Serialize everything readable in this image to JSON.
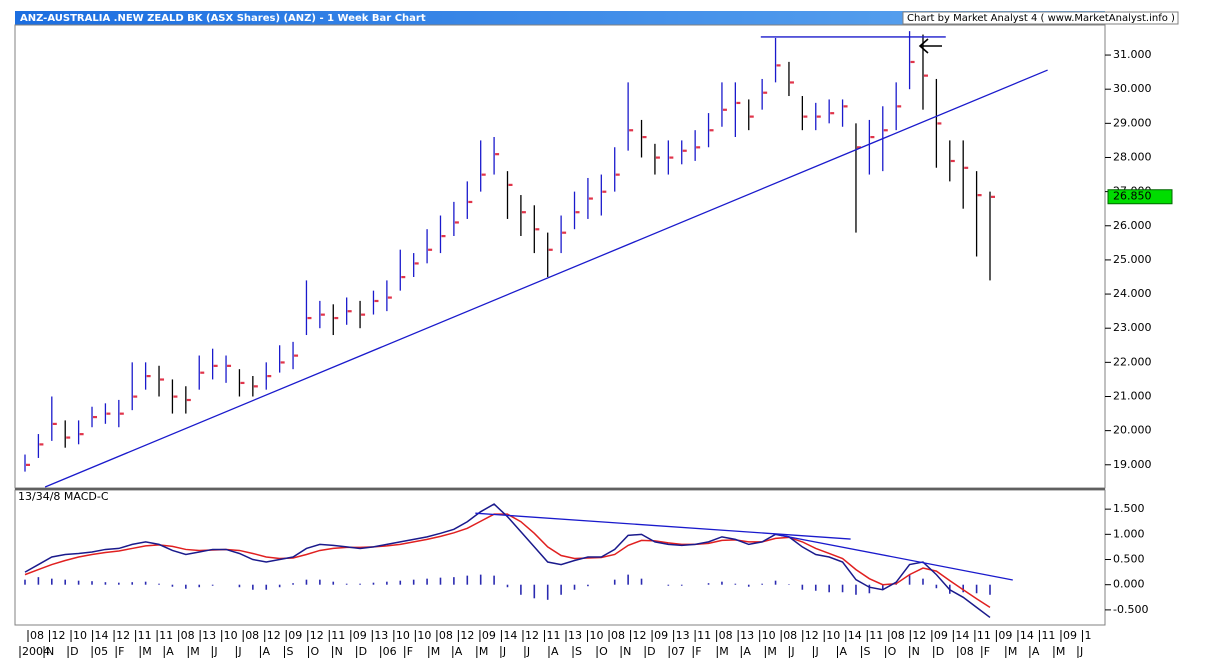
{
  "chart_data": [
    {
      "type": "ohlc",
      "title": "ANZ-AUSTRALIA .NEW ZEALD BK (ASX Shares) (ANZ) - 1 Week Bar Chart",
      "source": "Chart by Market Analyst 4 ( www.MarketAnalyst.info )",
      "up_color": "#1a1acc",
      "down_color": "#000000",
      "close_color": "#e0344a",
      "high": [
        19.3,
        19.9,
        21.0,
        20.3,
        20.3,
        20.7,
        20.8,
        20.9,
        22.0,
        22.0,
        21.9,
        21.5,
        21.3,
        22.2,
        22.4,
        22.2,
        21.8,
        21.6,
        22.0,
        22.5,
        22.6,
        24.4,
        23.8,
        23.7,
        23.9,
        23.8,
        24.1,
        24.4,
        25.3,
        25.2,
        25.9,
        26.3,
        26.7,
        27.3,
        28.5,
        28.6,
        27.6,
        26.9,
        26.6,
        25.8,
        26.3,
        27.0,
        27.4,
        27.5,
        28.3,
        30.2,
        29.1,
        28.4,
        28.5,
        28.5,
        28.8,
        29.3,
        30.2,
        30.2,
        29.7,
        30.3,
        31.5,
        30.8,
        29.8,
        29.6,
        29.7,
        29.7,
        29.0,
        29.1,
        29.5,
        30.2,
        31.7,
        31.6,
        30.3,
        28.5,
        28.5,
        27.6,
        27.0
      ],
      "low": [
        18.8,
        19.2,
        19.7,
        19.5,
        19.6,
        20.1,
        20.2,
        20.1,
        20.6,
        21.2,
        21.0,
        20.5,
        20.5,
        21.2,
        21.5,
        21.4,
        21.0,
        21.0,
        21.2,
        21.7,
        21.8,
        22.8,
        23.0,
        22.8,
        23.1,
        23.0,
        23.4,
        23.5,
        24.1,
        24.5,
        24.9,
        25.2,
        25.7,
        26.2,
        27.0,
        27.5,
        26.2,
        25.7,
        25.2,
        24.5,
        25.2,
        25.9,
        26.2,
        26.3,
        27.0,
        28.2,
        28.0,
        27.5,
        27.5,
        27.8,
        27.9,
        28.3,
        28.9,
        28.6,
        28.8,
        29.4,
        30.2,
        29.8,
        28.8,
        28.8,
        29.0,
        28.9,
        25.8,
        27.5,
        27.6,
        28.8,
        30.0,
        29.4,
        27.7,
        27.3,
        26.5,
        25.1,
        24.4
      ],
      "close": [
        19.0,
        19.6,
        20.2,
        19.8,
        19.9,
        20.4,
        20.5,
        20.5,
        21.0,
        21.6,
        21.5,
        21.0,
        20.9,
        21.7,
        21.9,
        21.9,
        21.4,
        21.3,
        21.6,
        22.0,
        22.2,
        23.3,
        23.4,
        23.3,
        23.5,
        23.4,
        23.8,
        23.9,
        24.5,
        24.9,
        25.3,
        25.7,
        26.1,
        26.7,
        27.5,
        28.1,
        27.2,
        26.4,
        25.9,
        25.3,
        25.8,
        26.4,
        26.8,
        27.0,
        27.5,
        28.8,
        28.6,
        28.0,
        28.0,
        28.2,
        28.3,
        28.8,
        29.4,
        29.6,
        29.2,
        29.9,
        30.7,
        30.2,
        29.2,
        29.2,
        29.3,
        29.5,
        28.3,
        28.6,
        28.8,
        29.5,
        30.8,
        30.4,
        29.0,
        27.9,
        27.7,
        26.9,
        26.85
      ],
      "last_price": 26.85,
      "last_price_label": "26.850",
      "last_price_color": "#00dd00",
      "trendline_color": "#1a1acc",
      "trendlines": [
        {
          "x": [
            1.5,
            76.3
          ],
          "y": [
            18.35,
            30.56
          ]
        },
        {
          "x": [
            54.9,
            68.7
          ],
          "y": [
            31.53,
            31.53
          ]
        }
      ],
      "ylim": [
        18.32,
        31.88
      ],
      "yticks": [
        {
          "value": 19,
          "label": "19.000"
        },
        {
          "value": 20,
          "label": "20.000"
        },
        {
          "value": 21,
          "label": "21.000"
        },
        {
          "value": 22,
          "label": "22.000"
        },
        {
          "value": 23,
          "label": "23.000"
        },
        {
          "value": 24,
          "label": "24.000"
        },
        {
          "value": 25,
          "label": "25.000"
        },
        {
          "value": 26,
          "label": "26.000"
        },
        {
          "value": 27,
          "label": "27.000"
        },
        {
          "value": 28,
          "label": "28.000"
        },
        {
          "value": 29,
          "label": "29.000"
        },
        {
          "value": 30,
          "label": "30.000"
        },
        {
          "value": 31,
          "label": "31.000"
        }
      ]
    },
    {
      "type": "macd",
      "label": "13/34/8 MACD-C",
      "macd_color": "#1a1a8c",
      "signal_color": "#e02020",
      "histogram_color": "#2a2ab0",
      "macd": [
        0.25,
        0.4,
        0.55,
        0.6,
        0.62,
        0.65,
        0.7,
        0.72,
        0.8,
        0.85,
        0.8,
        0.68,
        0.6,
        0.65,
        0.7,
        0.7,
        0.62,
        0.5,
        0.45,
        0.5,
        0.55,
        0.72,
        0.8,
        0.78,
        0.75,
        0.72,
        0.75,
        0.8,
        0.85,
        0.9,
        0.95,
        1.02,
        1.1,
        1.25,
        1.45,
        1.6,
        1.35,
        1.05,
        0.75,
        0.45,
        0.4,
        0.48,
        0.55,
        0.55,
        0.7,
        0.98,
        1.0,
        0.85,
        0.8,
        0.78,
        0.8,
        0.85,
        0.95,
        0.9,
        0.8,
        0.85,
        1.0,
        0.95,
        0.75,
        0.6,
        0.55,
        0.45,
        0.1,
        -0.05,
        -0.1,
        0.05,
        0.4,
        0.45,
        0.2,
        -0.1,
        -0.25,
        -0.45,
        -0.65
      ],
      "signal": [
        0.2,
        0.3,
        0.4,
        0.48,
        0.55,
        0.6,
        0.64,
        0.67,
        0.72,
        0.77,
        0.79,
        0.76,
        0.7,
        0.68,
        0.69,
        0.7,
        0.68,
        0.62,
        0.55,
        0.52,
        0.53,
        0.6,
        0.68,
        0.72,
        0.74,
        0.74,
        0.75,
        0.77,
        0.8,
        0.85,
        0.9,
        0.96,
        1.03,
        1.12,
        1.26,
        1.4,
        1.4,
        1.25,
        1.02,
        0.75,
        0.58,
        0.52,
        0.53,
        0.54,
        0.6,
        0.78,
        0.88,
        0.87,
        0.83,
        0.8,
        0.8,
        0.82,
        0.88,
        0.89,
        0.85,
        0.85,
        0.92,
        0.94,
        0.85,
        0.72,
        0.62,
        0.52,
        0.3,
        0.12,
        0.0,
        0.02,
        0.2,
        0.33,
        0.27,
        0.08,
        -0.1,
        -0.28,
        -0.45
      ],
      "histogram": [
        0.1,
        0.15,
        0.12,
        0.1,
        0.08,
        0.07,
        0.05,
        0.04,
        0.05,
        0.06,
        0.02,
        -0.04,
        -0.08,
        -0.05,
        -0.02,
        0,
        -0.05,
        -0.1,
        -0.1,
        -0.05,
        0.03,
        0.1,
        0.1,
        0.06,
        0.02,
        0.02,
        0.04,
        0.06,
        0.08,
        0.1,
        0.12,
        0.14,
        0.15,
        0.18,
        0.2,
        0.18,
        -0.05,
        -0.2,
        -0.27,
        -0.3,
        -0.2,
        -0.1,
        -0.03,
        0.0,
        0.1,
        0.2,
        0.12,
        0.0,
        -0.02,
        -0.02,
        0.0,
        0.03,
        0.06,
        0.02,
        -0.04,
        0.02,
        0.08,
        0.01,
        -0.1,
        -0.12,
        -0.15,
        -0.15,
        -0.2,
        -0.17,
        -0.1,
        0.03,
        0.2,
        0.12,
        -0.07,
        -0.18,
        -0.15,
        -0.17,
        -0.2
      ],
      "trendline_color": "#1a1acc",
      "trendlines": [
        {
          "x": [
            33.6,
            61.6
          ],
          "y": [
            1.42,
            0.906
          ]
        },
        {
          "x": [
            56.3,
            73.7
          ],
          "y": [
            0.985,
            0.094
          ]
        }
      ],
      "ylim": [
        -0.8,
        1.88
      ],
      "yticks": [
        {
          "value": -0.5,
          "label": "-0.500"
        },
        {
          "value": 0,
          "label": "0.000"
        },
        {
          "value": 0.5,
          "label": "0.500"
        },
        {
          "value": 1,
          "label": "1.000"
        },
        {
          "value": 1.5,
          "label": "1.500"
        }
      ]
    }
  ],
  "x_axis": {
    "day_labels": [
      "08",
      "12",
      "10",
      "14",
      "12",
      "11",
      "11",
      "08",
      "13",
      "10",
      "08",
      "12",
      "09",
      "12",
      "11",
      "09",
      "13",
      "10",
      "10",
      "08",
      "12",
      "09",
      "14",
      "12",
      "11",
      "13",
      "10",
      "08",
      "12",
      "09",
      "13",
      "11",
      "08",
      "13",
      "10",
      "08",
      "12",
      "10",
      "14",
      "11",
      "08",
      "12",
      "09",
      "14",
      "11",
      "09",
      "14",
      "11",
      "09",
      "1"
    ],
    "month_labels": [
      "2004",
      "N",
      "D",
      "05",
      "F",
      "M",
      "A",
      "M",
      "J",
      "J",
      "A",
      "S",
      "O",
      "N",
      "D",
      "06",
      "F",
      "M",
      "A",
      "M",
      "J",
      "J",
      "A",
      "S",
      "O",
      "N",
      "D",
      "07",
      "F",
      "M",
      "A",
      "M",
      "J",
      "J",
      "A",
      "S",
      "O",
      "N",
      "D",
      "08",
      "F",
      "M",
      "A",
      "M",
      "J"
    ]
  }
}
